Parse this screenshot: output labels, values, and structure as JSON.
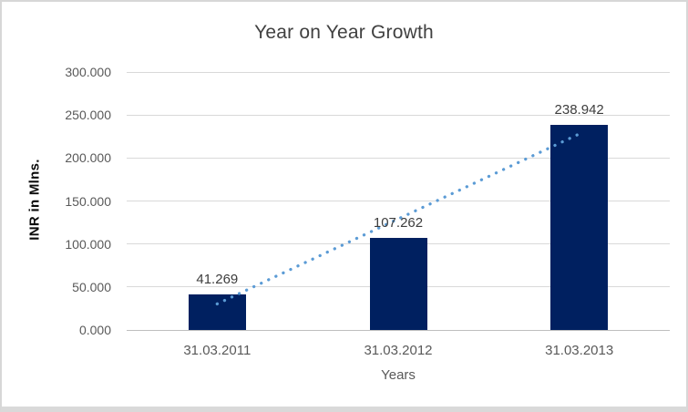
{
  "chart_data": {
    "type": "bar",
    "title": "Year on Year Growth",
    "categories": [
      "31.03.2011",
      "31.03.2012",
      "31.03.2013"
    ],
    "values": [
      41.269,
      107.262,
      238.942
    ],
    "data_labels": [
      "41.269",
      "107.262",
      "238.942"
    ],
    "xlabel": "Years",
    "ylabel": "INR in Mlns.",
    "ylim": [
      0,
      300
    ],
    "yticks": [
      {
        "value": 0,
        "label": "0.000"
      },
      {
        "value": 50,
        "label": "50.000"
      },
      {
        "value": 100,
        "label": "100.000"
      },
      {
        "value": 150,
        "label": "150.000"
      },
      {
        "value": 200,
        "label": "200.000"
      },
      {
        "value": 250,
        "label": "250.000"
      },
      {
        "value": 300,
        "label": "300.000"
      }
    ],
    "grid": true,
    "legend": "none",
    "bar_color": "#002060",
    "gridline_color": "#D9D9D9",
    "axis_line_color": "#BFBFBF",
    "trendline": {
      "type": "linear",
      "style": "dotted",
      "color": "#5B9BD5",
      "start_value": 30.33,
      "end_value": 227.98
    }
  }
}
